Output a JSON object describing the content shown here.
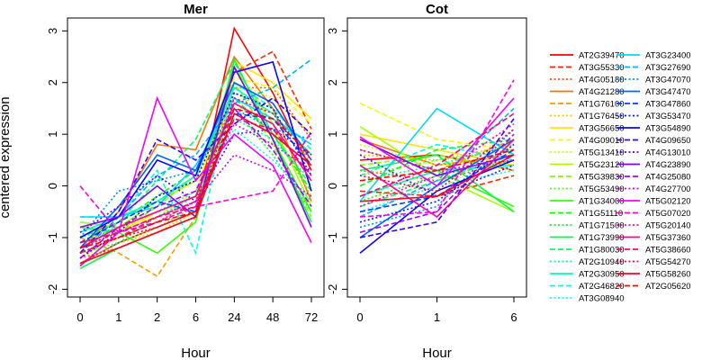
{
  "chart_data": [
    {
      "type": "line",
      "title": "Mer",
      "xlabel": "Hour",
      "ylabel": "centered expression",
      "categories": [
        "0",
        "1",
        "2",
        "6",
        "24",
        "48",
        "72"
      ],
      "ylim": [
        -2.15,
        3.25
      ],
      "yticks": [
        "-2",
        "-1",
        "0",
        "1",
        "2",
        "3"
      ],
      "grid": false,
      "series": [
        {
          "name": "AT2G39470",
          "values": [
            -1.5,
            -1.1,
            -0.8,
            -0.5,
            3.05,
            1.8,
            0.3
          ]
        },
        {
          "name": "AT3G55330",
          "values": [
            -1.3,
            -1.0,
            -0.6,
            -0.3,
            2.2,
            2.6,
            1.1
          ]
        },
        {
          "name": "AT4G05180",
          "values": [
            -1.4,
            -1.2,
            -0.9,
            -0.6,
            1.9,
            1.9,
            0.9
          ]
        },
        {
          "name": "AT4G21280",
          "values": [
            -1.2,
            -0.5,
            0.8,
            0.7,
            2.5,
            1.5,
            -0.3
          ]
        },
        {
          "name": "AT1G76100",
          "values": [
            -1.0,
            -1.3,
            -1.75,
            -0.6,
            2.0,
            1.6,
            0.4
          ]
        },
        {
          "name": "AT1G76450",
          "values": [
            -1.3,
            -1.1,
            -0.9,
            -0.5,
            1.8,
            1.4,
            0.6
          ]
        },
        {
          "name": "AT3G56650",
          "values": [
            -1.2,
            -0.9,
            -0.5,
            -0.2,
            2.4,
            2.0,
            1.3
          ]
        },
        {
          "name": "AT4G09010",
          "values": [
            -1.1,
            -0.8,
            -0.6,
            -0.1,
            2.1,
            1.9,
            1.2
          ]
        },
        {
          "name": "AT5G13410",
          "values": [
            -1.4,
            -1.0,
            -0.7,
            -0.3,
            2.0,
            1.7,
            1.0
          ]
        },
        {
          "name": "AT5G23120",
          "values": [
            -0.7,
            -0.8,
            -0.3,
            0.1,
            2.3,
            1.2,
            -0.4
          ]
        },
        {
          "name": "AT5G39830",
          "values": [
            -1.2,
            -0.9,
            -0.4,
            0.2,
            2.0,
            0.8,
            -0.6
          ]
        },
        {
          "name": "AT5G53490",
          "values": [
            -1.3,
            -1.1,
            -0.8,
            -0.4,
            1.6,
            1.1,
            -0.2
          ]
        },
        {
          "name": "AT1G34000",
          "values": [
            -0.8,
            -0.9,
            -1.3,
            -0.7,
            2.3,
            0.9,
            -0.5
          ]
        },
        {
          "name": "AT1G51110",
          "values": [
            -1.0,
            -0.7,
            -0.2,
            0.3,
            1.7,
            1.0,
            -0.1
          ]
        },
        {
          "name": "AT1G71500",
          "values": [
            -1.1,
            -0.8,
            -0.5,
            -0.2,
            1.5,
            0.6,
            -0.5
          ]
        },
        {
          "name": "AT1G73990",
          "values": [
            -1.6,
            -1.2,
            -0.9,
            -0.6,
            2.45,
            0.9,
            -0.7
          ]
        },
        {
          "name": "AT1G80030",
          "values": [
            -1.3,
            -0.7,
            0.1,
            0.9,
            2.4,
            1.0,
            0.0
          ]
        },
        {
          "name": "AT2G10940",
          "values": [
            -1.5,
            -1.1,
            -0.6,
            -0.2,
            1.3,
            0.9,
            0.1
          ]
        },
        {
          "name": "AT2G30950",
          "values": [
            -0.9,
            -0.6,
            -0.3,
            0.2,
            1.9,
            1.4,
            0.6
          ]
        },
        {
          "name": "AT2G46820",
          "values": [
            -0.6,
            -0.6,
            0.3,
            -1.3,
            2.0,
            1.5,
            0.7
          ]
        },
        {
          "name": "AT3G08940",
          "values": [
            -1.0,
            -0.8,
            -0.5,
            -0.1,
            1.1,
            0.5,
            -0.3
          ]
        },
        {
          "name": "AT3G23400",
          "values": [
            -0.6,
            -0.6,
            -0.4,
            0.4,
            1.7,
            1.3,
            0.8
          ]
        },
        {
          "name": "AT3G27690",
          "values": [
            -1.3,
            -0.6,
            0.2,
            0.6,
            1.6,
            1.9,
            2.45
          ]
        },
        {
          "name": "AT3G47070",
          "values": [
            -1.0,
            -0.1,
            0.1,
            0.3,
            1.5,
            1.1,
            0.9
          ]
        },
        {
          "name": "AT3G47470",
          "values": [
            -1.2,
            -0.4,
            0.6,
            0.3,
            2.0,
            1.6,
            0.5
          ]
        },
        {
          "name": "AT3G47860",
          "values": [
            -1.1,
            -0.7,
            -0.3,
            -0.5,
            1.4,
            1.3,
            0.4
          ]
        },
        {
          "name": "AT3G53470",
          "values": [
            -1.4,
            -0.9,
            -0.2,
            0.1,
            1.8,
            1.5,
            0.2
          ]
        },
        {
          "name": "AT3G54890",
          "values": [
            -1.0,
            -0.6,
            0.5,
            0.2,
            2.2,
            2.4,
            -0.1
          ]
        },
        {
          "name": "AT4G09650",
          "values": [
            -1.3,
            -0.5,
            0.9,
            0.5,
            1.2,
            1.7,
            1.0
          ]
        },
        {
          "name": "AT4G13010",
          "values": [
            -0.9,
            -0.4,
            0.2,
            -0.3,
            1.0,
            1.1,
            0.6
          ]
        },
        {
          "name": "AT4G23890",
          "values": [
            -0.8,
            -0.6,
            0.0,
            -0.6,
            2.3,
            0.9,
            -0.8
          ]
        },
        {
          "name": "AT4G25080",
          "values": [
            -1.4,
            -0.8,
            -0.4,
            -0.1,
            1.5,
            0.7,
            -0.4
          ]
        },
        {
          "name": "AT4G27700",
          "values": [
            -1.2,
            -0.9,
            -0.6,
            -0.3,
            0.6,
            0.3,
            -0.2
          ]
        },
        {
          "name": "AT5G02120",
          "values": [
            -1.55,
            -0.9,
            1.7,
            0.1,
            1.0,
            0.4,
            -1.1
          ]
        },
        {
          "name": "AT5G07020",
          "values": [
            0.0,
            -0.9,
            -0.7,
            -0.4,
            -0.25,
            -0.1,
            1.05
          ]
        },
        {
          "name": "AT5G20140",
          "values": [
            -1.3,
            -1.0,
            -0.7,
            -0.3,
            1.2,
            0.8,
            0.3
          ]
        },
        {
          "name": "AT5G37360",
          "values": [
            -1.2,
            -0.8,
            -0.5,
            -0.2,
            1.6,
            1.2,
            0.1
          ]
        },
        {
          "name": "AT5G38660",
          "values": [
            -1.1,
            -0.9,
            -0.6,
            -0.4,
            1.3,
            1.1,
            0.2
          ]
        },
        {
          "name": "AT5G54270",
          "values": [
            -1.3,
            -1.0,
            -0.8,
            -0.5,
            1.7,
            1.4,
            0.5
          ]
        },
        {
          "name": "AT5G58260",
          "values": [
            -1.5,
            -1.2,
            -0.9,
            -0.6,
            1.4,
            1.0,
            0.4
          ]
        },
        {
          "name": "AT2G05620",
          "values": [
            -1.2,
            -1.0,
            -0.7,
            -0.5,
            1.5,
            1.3,
            0.6
          ]
        }
      ]
    },
    {
      "type": "line",
      "title": "Cot",
      "xlabel": "Hour",
      "ylabel": "",
      "categories": [
        "0",
        "1",
        "6"
      ],
      "ylim": [
        -2.15,
        3.25
      ],
      "yticks": [
        "-2",
        "-1",
        "0",
        "1",
        "2",
        "3"
      ],
      "grid": false,
      "series": [
        {
          "name": "AT2G39470",
          "values": [
            0.5,
            0.6,
            0.3
          ]
        },
        {
          "name": "AT3G55330",
          "values": [
            -0.1,
            -0.2,
            0.2
          ]
        },
        {
          "name": "AT4G05180",
          "values": [
            0.3,
            0.1,
            0.5
          ]
        },
        {
          "name": "AT4G21280",
          "values": [
            0.9,
            0.4,
            0.6
          ]
        },
        {
          "name": "AT1G76100",
          "values": [
            0.7,
            0.3,
            0.9
          ]
        },
        {
          "name": "AT1G76450",
          "values": [
            0.6,
            0.5,
            0.8
          ]
        },
        {
          "name": "AT3G56650",
          "values": [
            1.0,
            0.7,
            0.4
          ]
        },
        {
          "name": "AT4G09010",
          "values": [
            1.6,
            0.9,
            0.7
          ]
        },
        {
          "name": "AT5G13410",
          "values": [
            0.8,
            0.4,
            0.6
          ]
        },
        {
          "name": "AT5G23120",
          "values": [
            1.15,
            0.2,
            -0.5
          ]
        },
        {
          "name": "AT5G39830",
          "values": [
            0.4,
            0.6,
            0.3
          ]
        },
        {
          "name": "AT5G53490",
          "values": [
            0.2,
            0.5,
            0.7
          ]
        },
        {
          "name": "AT1G34000",
          "values": [
            -0.2,
            0.3,
            -0.4
          ]
        },
        {
          "name": "AT1G51110",
          "values": [
            0.0,
            0.7,
            0.9
          ]
        },
        {
          "name": "AT1G71500",
          "values": [
            -0.3,
            0.2,
            0.5
          ]
        },
        {
          "name": "AT1G73990",
          "values": [
            0.3,
            0.6,
            -0.5
          ]
        },
        {
          "name": "AT1G80030",
          "values": [
            -0.4,
            0.1,
            0.6
          ]
        },
        {
          "name": "AT2G10940",
          "values": [
            0.1,
            0.4,
            0.8
          ]
        },
        {
          "name": "AT2G30950",
          "values": [
            -0.2,
            0.3,
            0.4
          ]
        },
        {
          "name": "AT2G46820",
          "values": [
            0.2,
            0.8,
            0.5
          ]
        },
        {
          "name": "AT3G08940",
          "values": [
            -0.5,
            0.0,
            0.3
          ]
        },
        {
          "name": "AT3G23400",
          "values": [
            -0.3,
            1.5,
            0.6
          ]
        },
        {
          "name": "AT3G27690",
          "values": [
            -0.6,
            0.1,
            1.5
          ]
        },
        {
          "name": "AT3G47070",
          "values": [
            -0.8,
            -0.4,
            1.1
          ]
        },
        {
          "name": "AT3G47470",
          "values": [
            -1.0,
            0.0,
            0.9
          ]
        },
        {
          "name": "AT3G47860",
          "values": [
            -0.5,
            -0.2,
            0.7
          ]
        },
        {
          "name": "AT3G53470",
          "values": [
            -0.7,
            -0.3,
            0.8
          ]
        },
        {
          "name": "AT3G54890",
          "values": [
            -1.3,
            -0.1,
            0.5
          ]
        },
        {
          "name": "AT4G09650",
          "values": [
            -1.0,
            -0.7,
            1.3
          ]
        },
        {
          "name": "AT4G13010",
          "values": [
            0.6,
            -0.2,
            0.4
          ]
        },
        {
          "name": "AT4G23890",
          "values": [
            0.9,
            0.2,
            0.6
          ]
        },
        {
          "name": "AT4G25080",
          "values": [
            -0.9,
            -0.5,
            1.0
          ]
        },
        {
          "name": "AT4G27700",
          "values": [
            0.7,
            0.3,
            0.5
          ]
        },
        {
          "name": "AT5G02120",
          "values": [
            0.95,
            0.0,
            1.7
          ]
        },
        {
          "name": "AT5G07020",
          "values": [
            -0.6,
            -0.5,
            2.05
          ]
        },
        {
          "name": "AT5G20140",
          "values": [
            -0.4,
            0.2,
            1.2
          ]
        },
        {
          "name": "AT5G37360",
          "values": [
            0.4,
            -0.6,
            0.9
          ]
        },
        {
          "name": "AT5G38660",
          "values": [
            -0.2,
            0.4,
            1.4
          ]
        },
        {
          "name": "AT5G54270",
          "values": [
            0.2,
            -0.1,
            1.1
          ]
        },
        {
          "name": "AT5G58260",
          "values": [
            -0.3,
            -0.2,
            0.6
          ]
        },
        {
          "name": "AT2G05620",
          "values": [
            0.1,
            0.3,
            0.7
          ]
        }
      ]
    }
  ],
  "legend": {
    "placement": "right",
    "entries": [
      {
        "label": "AT2G39470",
        "color": "#FF0000",
        "style": "solid"
      },
      {
        "label": "AT3G55330",
        "color": "#FF2600",
        "style": "dashed"
      },
      {
        "label": "AT4G05180",
        "color": "#FF4C00",
        "style": "dotted"
      },
      {
        "label": "AT4G21280",
        "color": "#FF7300",
        "style": "solid"
      },
      {
        "label": "AT1G76100",
        "color": "#FF9900",
        "style": "dashed"
      },
      {
        "label": "AT1G76450",
        "color": "#FFBF00",
        "style": "dotted"
      },
      {
        "label": "AT3G56650",
        "color": "#FFE500",
        "style": "solid"
      },
      {
        "label": "AT4G09010",
        "color": "#F2FF00",
        "style": "dashed"
      },
      {
        "label": "AT5G13410",
        "color": "#CCFF00",
        "style": "dotted"
      },
      {
        "label": "AT5G23120",
        "color": "#A6FF00",
        "style": "solid"
      },
      {
        "label": "AT5G39830",
        "color": "#80FF00",
        "style": "dashed"
      },
      {
        "label": "AT5G53490",
        "color": "#59FF00",
        "style": "dotted"
      },
      {
        "label": "AT1G34000",
        "color": "#33FF00",
        "style": "solid"
      },
      {
        "label": "AT1G51110",
        "color": "#0DFF00",
        "style": "dashed"
      },
      {
        "label": "AT1G71500",
        "color": "#00FF1A",
        "style": "dotted"
      },
      {
        "label": "AT1G73990",
        "color": "#00FF40",
        "style": "solid"
      },
      {
        "label": "AT1G80030",
        "color": "#00FF66",
        "style": "dashed"
      },
      {
        "label": "AT2G10940",
        "color": "#00FF8C",
        "style": "dotted"
      },
      {
        "label": "AT2G30950",
        "color": "#00FFB3",
        "style": "solid"
      },
      {
        "label": "AT2G46820",
        "color": "#00FFD9",
        "style": "dashed"
      },
      {
        "label": "AT3G08940",
        "color": "#00FFFF",
        "style": "dotted"
      },
      {
        "label": "AT3G23400",
        "color": "#00D9FF",
        "style": "solid"
      },
      {
        "label": "AT3G27690",
        "color": "#00B3FF",
        "style": "dashed"
      },
      {
        "label": "AT3G47070",
        "color": "#008CFF",
        "style": "dotted"
      },
      {
        "label": "AT3G47470",
        "color": "#0066FF",
        "style": "solid"
      },
      {
        "label": "AT3G47860",
        "color": "#0040FF",
        "style": "dashed"
      },
      {
        "label": "AT3G53470",
        "color": "#001AFF",
        "style": "dotted"
      },
      {
        "label": "AT3G54890",
        "color": "#0D00FF",
        "style": "solid"
      },
      {
        "label": "AT4G09650",
        "color": "#3300FF",
        "style": "dashed"
      },
      {
        "label": "AT4G13010",
        "color": "#5900FF",
        "style": "dotted"
      },
      {
        "label": "AT4G23890",
        "color": "#8000FF",
        "style": "solid"
      },
      {
        "label": "AT4G25080",
        "color": "#A600FF",
        "style": "dashed"
      },
      {
        "label": "AT4G27700",
        "color": "#CC00FF",
        "style": "dotted"
      },
      {
        "label": "AT5G02120",
        "color": "#F200FF",
        "style": "solid"
      },
      {
        "label": "AT5G07020",
        "color": "#FF00E6",
        "style": "dashed"
      },
      {
        "label": "AT5G20140",
        "color": "#FF00BF",
        "style": "dotted"
      },
      {
        "label": "AT5G37360",
        "color": "#FF0099",
        "style": "solid"
      },
      {
        "label": "AT5G38660",
        "color": "#FF0073",
        "style": "dashed"
      },
      {
        "label": "AT5G54270",
        "color": "#FF004D",
        "style": "dotted"
      },
      {
        "label": "AT5G58260",
        "color": "#FF0026",
        "style": "solid"
      },
      {
        "label": "AT2G05620",
        "color": "#FF0000",
        "style": "dashed"
      }
    ]
  }
}
